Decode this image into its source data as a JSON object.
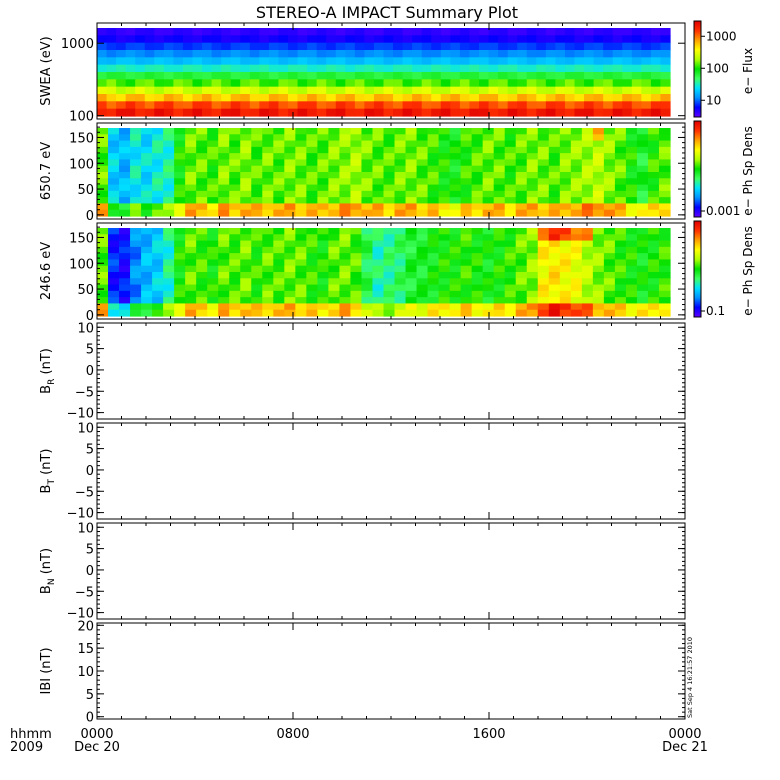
{
  "title": "STEREO-A IMPACT Summary Plot",
  "stamp": "Sat Sep  4 16:21:57 2010",
  "colors": {
    "rainbow": [
      "#6000ff",
      "#0000ff",
      "#0090ff",
      "#00e0ff",
      "#40ff60",
      "#00e000",
      "#b0ff00",
      "#ffff00",
      "#ffa000",
      "#ff3000",
      "#e00000"
    ]
  },
  "chart_data": [
    {
      "type": "heatmap",
      "ylabel": "SWEA (eV)",
      "yscale": "log",
      "ylim": [
        90,
        1900
      ],
      "yticks": [
        {
          "v": 100,
          "label": "100"
        },
        {
          "v": 1000,
          "label": "1000"
        }
      ],
      "colorbar": {
        "label": "e− Flux",
        "scale": "log",
        "range": [
          3,
          3000
        ],
        "ticks": [
          {
            "v": 10,
            "label": "10"
          },
          {
            "v": 100,
            "label": "100"
          },
          {
            "v": 1000,
            "label": "1000"
          }
        ]
      },
      "description_levels": [
        0.95,
        0.92,
        0.86,
        0.8,
        0.74,
        0.66,
        0.56,
        0.46,
        0.36,
        0.24,
        0.12,
        0.05
      ]
    },
    {
      "type": "heatmap",
      "ylabel": "650.7 eV",
      "ylim": [
        -8,
        178
      ],
      "yticks": [
        {
          "v": 0,
          "label": "0"
        },
        {
          "v": 50,
          "label": "50"
        },
        {
          "v": 100,
          "label": "100"
        },
        {
          "v": 150,
          "label": "150"
        }
      ],
      "colorbar": {
        "label": "e− Ph Sp Dens",
        "scale": "log",
        "ticks": [
          {
            "v": 0.001,
            "label": "0.001"
          }
        ]
      },
      "column_levels": [
        0.55,
        0.28,
        0.25,
        0.32,
        0.3,
        0.33,
        0.35,
        0.5,
        0.56,
        0.55,
        0.53,
        0.57,
        0.55,
        0.58,
        0.54,
        0.56,
        0.55,
        0.57,
        0.56,
        0.54,
        0.55,
        0.57,
        0.58,
        0.6,
        0.56,
        0.55,
        0.54,
        0.56,
        0.57,
        0.55,
        0.53,
        0.5,
        0.48,
        0.52,
        0.54,
        0.56,
        0.55,
        0.53,
        0.55,
        0.57,
        0.56,
        0.54,
        0.57,
        0.58,
        0.6,
        0.62,
        0.58,
        0.55,
        0.5,
        0.45,
        0.52,
        0.55
      ]
    },
    {
      "type": "heatmap",
      "ylabel": "246.6 eV",
      "ylim": [
        -8,
        178
      ],
      "yticks": [
        {
          "v": 0,
          "label": "0"
        },
        {
          "v": 50,
          "label": "50"
        },
        {
          "v": 100,
          "label": "100"
        },
        {
          "v": 150,
          "label": "150"
        }
      ],
      "colorbar": {
        "label": "e− Ph Sp Dens",
        "scale": "log",
        "ticks": [
          {
            "v": 0.1,
            "label": "0.1"
          }
        ]
      },
      "column_levels": [
        0.55,
        0.12,
        0.1,
        0.2,
        0.25,
        0.28,
        0.35,
        0.5,
        0.55,
        0.53,
        0.5,
        0.55,
        0.54,
        0.56,
        0.52,
        0.55,
        0.54,
        0.56,
        0.55,
        0.52,
        0.5,
        0.55,
        0.56,
        0.54,
        0.42,
        0.36,
        0.38,
        0.4,
        0.45,
        0.46,
        0.48,
        0.5,
        0.5,
        0.52,
        0.5,
        0.48,
        0.5,
        0.52,
        0.55,
        0.58,
        0.7,
        0.72,
        0.7,
        0.68,
        0.62,
        0.58,
        0.55,
        0.52,
        0.5,
        0.48,
        0.5,
        0.52
      ]
    },
    {
      "type": "line",
      "ylabel_main": "B",
      "ylabel_sub": "R",
      "ylabel_unit": " (nT)",
      "ylim": [
        -11.5,
        11
      ],
      "yticks": [
        {
          "v": -10,
          "label": "−10"
        },
        {
          "v": -5,
          "label": "−5"
        },
        {
          "v": 0,
          "label": "0"
        },
        {
          "v": 5,
          "label": "5"
        },
        {
          "v": 10,
          "label": "10"
        }
      ],
      "series": []
    },
    {
      "type": "line",
      "ylabel_main": "B",
      "ylabel_sub": "T",
      "ylabel_unit": " (nT)",
      "ylim": [
        -11.5,
        11
      ],
      "yticks": [
        {
          "v": -10,
          "label": "−10"
        },
        {
          "v": -5,
          "label": "−5"
        },
        {
          "v": 0,
          "label": "0"
        },
        {
          "v": 5,
          "label": "5"
        },
        {
          "v": 10,
          "label": "10"
        }
      ],
      "series": []
    },
    {
      "type": "line",
      "ylabel_main": "B",
      "ylabel_sub": "N",
      "ylabel_unit": " (nT)",
      "ylim": [
        -11.5,
        11
      ],
      "yticks": [
        {
          "v": -10,
          "label": "−10"
        },
        {
          "v": -5,
          "label": "−5"
        },
        {
          "v": 0,
          "label": "0"
        },
        {
          "v": 5,
          "label": "5"
        },
        {
          "v": 10,
          "label": "10"
        }
      ],
      "series": []
    },
    {
      "type": "line",
      "ylabel_main": "IBI (nT)",
      "ylabel_sub": "",
      "ylabel_unit": "",
      "ylim": [
        -0.5,
        20.5
      ],
      "yticks": [
        {
          "v": 0,
          "label": "0"
        },
        {
          "v": 5,
          "label": "5"
        },
        {
          "v": 10,
          "label": "10"
        },
        {
          "v": 15,
          "label": "15"
        },
        {
          "v": 20,
          "label": "20"
        }
      ],
      "series": []
    }
  ],
  "xaxis": {
    "range_hours": [
      0,
      24
    ],
    "ticks": [
      {
        "v": 0,
        "label": "0000",
        "sublabel": "Dec 20"
      },
      {
        "v": 8,
        "label": "0800",
        "sublabel": ""
      },
      {
        "v": 16,
        "label": "1600",
        "sublabel": ""
      },
      {
        "v": 24,
        "label": "0000",
        "sublabel": "Dec 21"
      }
    ],
    "corner_top": "hhmm",
    "corner_bottom": "2009"
  }
}
